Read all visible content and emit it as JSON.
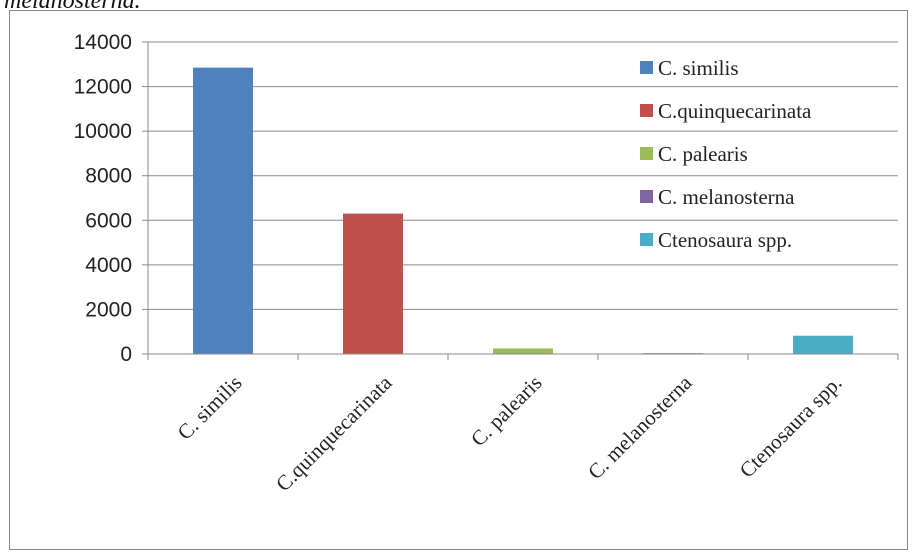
{
  "caption_fragment": "melanosterna.",
  "chart_data": {
    "type": "bar",
    "title": "",
    "xlabel": "",
    "ylabel": "",
    "categories": [
      "C. similis",
      "C.quinquecarinata",
      "C. palearis",
      "C. melanosterna",
      "Ctenosaura spp."
    ],
    "values": [
      12850,
      6300,
      250,
      30,
      820
    ],
    "colors": [
      "#4f81bd",
      "#c0504d",
      "#9bbb59",
      "#8064a2",
      "#4bacc6"
    ],
    "ylim": [
      0,
      14000
    ],
    "yticks": [
      0,
      2000,
      4000,
      6000,
      8000,
      10000,
      12000,
      14000
    ],
    "grid": true,
    "legend": {
      "position": "right",
      "entries": [
        "C. similis",
        "C.quinquecarinata",
        "C. palearis",
        "C. melanosterna",
        "Ctenosaura spp."
      ]
    }
  }
}
